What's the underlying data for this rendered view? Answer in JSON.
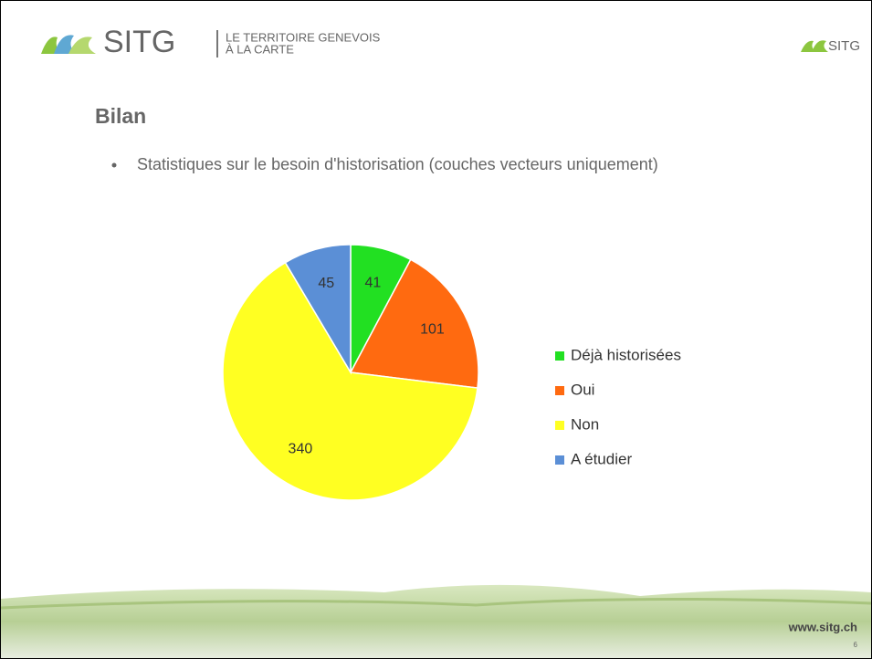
{
  "header": {
    "logo": "SITG",
    "tagline_1": "LE TERRITOIRE GENEVOIS",
    "tagline_2": "À LA CARTE",
    "logo_right": "SITG"
  },
  "title": "Bilan",
  "bullet": "Statistiques sur le besoin d'historisation (couches vecteurs uniquement)",
  "chart_data": {
    "type": "pie",
    "categories": [
      "Déjà historisées",
      "Oui",
      "Non",
      "A étudier"
    ],
    "values": [
      41,
      101,
      340,
      45
    ],
    "colors": [
      "#22e022",
      "#ff6a10",
      "#ffff22",
      "#5b8fd6"
    ]
  },
  "footer": {
    "url": "www.sitg.ch",
    "page": "6"
  }
}
